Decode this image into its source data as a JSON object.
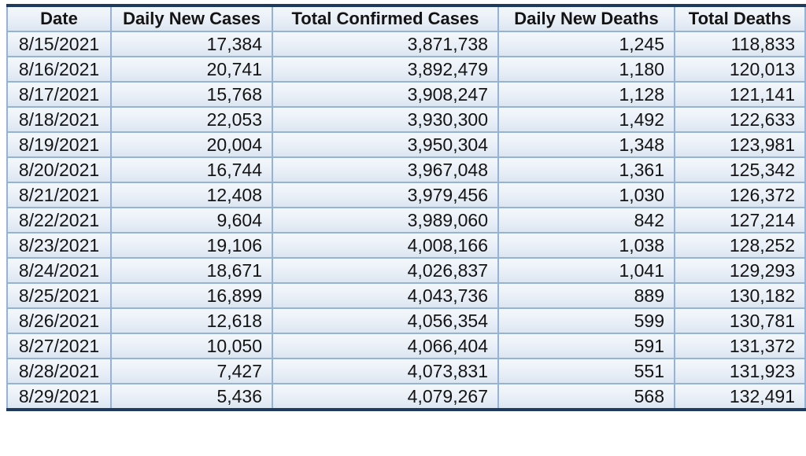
{
  "chart_data": {
    "type": "table",
    "columns": [
      "Date",
      "Daily New Cases",
      "Total Confirmed Cases",
      "Daily New Deaths",
      "Total Deaths"
    ],
    "rows": [
      [
        "8/15/2021",
        "17,384",
        "3,871,738",
        "1,245",
        "118,833"
      ],
      [
        "8/16/2021",
        "20,741",
        "3,892,479",
        "1,180",
        "120,013"
      ],
      [
        "8/17/2021",
        "15,768",
        "3,908,247",
        "1,128",
        "121,141"
      ],
      [
        "8/18/2021",
        "22,053",
        "3,930,300",
        "1,492",
        "122,633"
      ],
      [
        "8/19/2021",
        "20,004",
        "3,950,304",
        "1,348",
        "123,981"
      ],
      [
        "8/20/2021",
        "16,744",
        "3,967,048",
        "1,361",
        "125,342"
      ],
      [
        "8/21/2021",
        "12,408",
        "3,979,456",
        "1,030",
        "126,372"
      ],
      [
        "8/22/2021",
        "9,604",
        "3,989,060",
        "842",
        "127,214"
      ],
      [
        "8/23/2021",
        "19,106",
        "4,008,166",
        "1,038",
        "128,252"
      ],
      [
        "8/24/2021",
        "18,671",
        "4,026,837",
        "1,041",
        "129,293"
      ],
      [
        "8/25/2021",
        "16,899",
        "4,043,736",
        "889",
        "130,182"
      ],
      [
        "8/26/2021",
        "12,618",
        "4,056,354",
        "599",
        "130,781"
      ],
      [
        "8/27/2021",
        "10,050",
        "4,066,404",
        "591",
        "131,372"
      ],
      [
        "8/28/2021",
        "7,427",
        "4,073,831",
        "551",
        "131,923"
      ],
      [
        "8/29/2021",
        "5,436",
        "4,079,267",
        "568",
        "132,491"
      ]
    ]
  },
  "colors": {
    "border_dark": "#1e3a5f",
    "border_light": "#95b3d7",
    "row_gradient_top": "#f4f8fc",
    "row_gradient_bottom": "#dce6f1",
    "text": "#141414"
  }
}
